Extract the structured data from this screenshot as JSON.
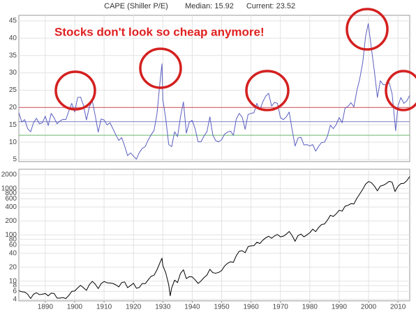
{
  "chart_data": [
    {
      "type": "line",
      "title": "CAPE (Shiller P/E)",
      "median_label": "Median: 15.92",
      "current_label": "Current: 23.52",
      "annotation": "Stocks don't look so cheap anymore!",
      "xlim": [
        1881,
        2014
      ],
      "ylim": [
        4.4,
        46.6
      ],
      "yticks": [
        5,
        10,
        15,
        20,
        25,
        30,
        35,
        40,
        45
      ],
      "grid": true,
      "reference_lines": [
        {
          "value": 20,
          "color": "#d8707a"
        },
        {
          "value": 15.92,
          "color": "#8a8ac8"
        },
        {
          "value": 12,
          "color": "#7cc07c"
        }
      ],
      "series": [
        {
          "color": "#5a5fc0",
          "x": [
            1881,
            1882,
            1883,
            1884,
            1885,
            1886,
            1887,
            1888,
            1889,
            1890,
            1891,
            1892,
            1893,
            1894,
            1895,
            1896,
            1897,
            1898,
            1899,
            1900,
            1901,
            1902,
            1903,
            1904,
            1905,
            1906,
            1907,
            1908,
            1909,
            1910,
            1911,
            1912,
            1913,
            1914,
            1915,
            1916,
            1917,
            1918,
            1919,
            1920,
            1921,
            1922,
            1923,
            1924,
            1925,
            1926,
            1927,
            1928,
            1929,
            1929.7,
            1930,
            1931,
            1932,
            1933,
            1934,
            1935,
            1936,
            1937,
            1938,
            1939,
            1940,
            1941,
            1942,
            1943,
            1944,
            1945,
            1946,
            1947,
            1948,
            1949,
            1950,
            1951,
            1952,
            1953,
            1954,
            1955,
            1956,
            1957,
            1958,
            1959,
            1960,
            1961,
            1962,
            1963,
            1964,
            1965,
            1966,
            1967,
            1968,
            1969,
            1970,
            1971,
            1972,
            1973,
            1974,
            1975,
            1976,
            1977,
            1978,
            1979,
            1980,
            1981,
            1982,
            1983,
            1984,
            1985,
            1986,
            1987,
            1988,
            1989,
            1990,
            1991,
            1992,
            1993,
            1994,
            1995,
            1996,
            1997,
            1998,
            1999,
            1999.9,
            2001,
            2002,
            2003,
            2004,
            2005,
            2006,
            2007,
            2008,
            2009,
            2009.2,
            2010,
            2011,
            2012,
            2013,
            2014
          ],
          "values": [
            18.5,
            15.8,
            16.5,
            13.9,
            13.0,
            15.6,
            16.9,
            15.3,
            15.6,
            17.5,
            14.8,
            18.3,
            17.0,
            15.3,
            16.1,
            16.6,
            16.5,
            19.0,
            21.2,
            18.7,
            22.9,
            23.0,
            20.6,
            16.4,
            20.2,
            21.9,
            17.6,
            12.9,
            16.7,
            16.4,
            15.0,
            15.6,
            13.9,
            12.1,
            10.5,
            11.3,
            8.9,
            6.1,
            6.9,
            6.0,
            5.1,
            7.0,
            8.2,
            8.7,
            10.6,
            12.1,
            13.4,
            18.1,
            27.1,
            32.6,
            22.3,
            16.7,
            9.3,
            8.7,
            13.0,
            11.6,
            17.3,
            21.6,
            12.6,
            15.8,
            16.3,
            13.8,
            10.1,
            10.1,
            11.8,
            13.0,
            17.3,
            12.1,
            10.4,
            10.1,
            10.7,
            12.3,
            12.9,
            13.2,
            12.0,
            16.7,
            18.3,
            17.2,
            13.7,
            18.0,
            18.3,
            18.5,
            21.2,
            19.3,
            21.6,
            23.3,
            24.1,
            20.4,
            21.5,
            21.2,
            17.1,
            16.5,
            17.3,
            18.7,
            13.5,
            8.9,
            11.2,
            11.4,
            9.2,
            9.3,
            8.9,
            9.3,
            7.4,
            8.8,
            9.9,
            10.0,
            11.7,
            14.9,
            13.9,
            15.1,
            17.1,
            15.6,
            19.8,
            20.3,
            21.4,
            20.2,
            24.8,
            28.3,
            32.9,
            40.6,
            44.2,
            36.9,
            30.3,
            22.9,
            27.7,
            26.6,
            26.5,
            27.2,
            24.0,
            15.2,
            13.3,
            20.5,
            22.9,
            21.2,
            21.9,
            23.5
          ]
        }
      ]
    },
    {
      "type": "line",
      "log_scale": true,
      "xlim": [
        1881,
        2014
      ],
      "xticks": [
        1890,
        1900,
        1910,
        1920,
        1930,
        1940,
        1950,
        1960,
        1970,
        1980,
        1990,
        2000,
        2010
      ],
      "ylim": [
        3.74,
        2624
      ],
      "yticks": [
        4,
        6,
        8,
        10,
        20,
        40,
        60,
        80,
        100,
        200,
        400,
        600,
        800,
        1000,
        2000
      ],
      "grid": true,
      "series": [
        {
          "color": "#000000",
          "x": [
            1881,
            1882,
            1883,
            1884,
            1885,
            1886,
            1887,
            1888,
            1889,
            1890,
            1891,
            1892,
            1893,
            1894,
            1895,
            1896,
            1897,
            1898,
            1899,
            1900,
            1901,
            1902,
            1903,
            1904,
            1905,
            1906,
            1907,
            1908,
            1909,
            1910,
            1911,
            1912,
            1913,
            1914,
            1915,
            1916,
            1917,
            1918,
            1919,
            1920,
            1921,
            1922,
            1923,
            1924,
            1925,
            1926,
            1927,
            1928,
            1929,
            1929.7,
            1930,
            1931,
            1932,
            1932.5,
            1933,
            1934,
            1935,
            1936,
            1937,
            1938,
            1939,
            1940,
            1941,
            1942,
            1943,
            1944,
            1945,
            1946,
            1947,
            1948,
            1949,
            1950,
            1951,
            1952,
            1953,
            1954,
            1955,
            1956,
            1957,
            1958,
            1959,
            1960,
            1961,
            1962,
            1963,
            1964,
            1965,
            1966,
            1967,
            1968,
            1969,
            1970,
            1971,
            1972,
            1973,
            1974,
            1975,
            1976,
            1977,
            1978,
            1979,
            1980,
            1981,
            1982,
            1983,
            1984,
            1985,
            1986,
            1987,
            1988,
            1989,
            1990,
            1991,
            1992,
            1993,
            1994,
            1995,
            1996,
            1997,
            1998,
            1999,
            2000,
            2001,
            2002,
            2003,
            2004,
            2005,
            2006,
            2007,
            2008,
            2009,
            2010,
            2011,
            2012,
            2013,
            2014
          ],
          "values": [
            6.2,
            5.9,
            5.8,
            5.2,
            4.2,
            5.2,
            5.6,
            5.1,
            5.2,
            5.4,
            4.8,
            5.5,
            5.4,
            4.3,
            4.3,
            4.4,
            4.2,
            4.9,
            6.0,
            6.1,
            7.1,
            8.1,
            7.2,
            6.3,
            8.4,
            9.9,
            8.6,
            6.9,
            8.8,
            9.8,
            9.2,
            9.1,
            8.9,
            8.3,
            7.5,
            9.3,
            9.6,
            7.2,
            8.0,
            9.0,
            7.0,
            7.3,
            8.9,
            8.8,
            10.6,
            12.7,
            13.4,
            17.5,
            24.9,
            31.3,
            21.7,
            15.0,
            8.3,
            4.8,
            7.1,
            10.5,
            9.3,
            14.7,
            17.6,
            11.3,
            12.5,
            12.3,
            10.6,
            8.9,
            10.1,
            11.9,
            13.5,
            18.0,
            15.2,
            14.8,
            15.4,
            16.9,
            21.2,
            24.2,
            26.2,
            25.5,
            35.6,
            44.2,
            45.4,
            41.1,
            55.6,
            58.0,
            58.5,
            69.1,
            65.1,
            76.5,
            86.1,
            93.3,
            84.5,
            95.0,
            102.0,
            90.3,
            93.5,
            103.3,
            118.4,
            96.1,
            72.6,
            96.9,
            103.8,
            90.3,
            99.7,
            110.9,
            132.97,
            117.3,
            144.3,
            166.4,
            171.6,
            208.2,
            264.5,
            250.5,
            285.4,
            339.97,
            325.5,
            416.1,
            435.2,
            472.99,
            465.3,
            614.4,
            766.2,
            963.4,
            1248.8,
            1425.6,
            1335.6,
            1130.2,
            895.8,
            1132.5,
            1181.4,
            1282.6,
            1438.2,
            1379.0,
            865.6,
            1123.6,
            1282.6,
            1300.6,
            1480.4,
            1822.4
          ]
        }
      ]
    }
  ]
}
